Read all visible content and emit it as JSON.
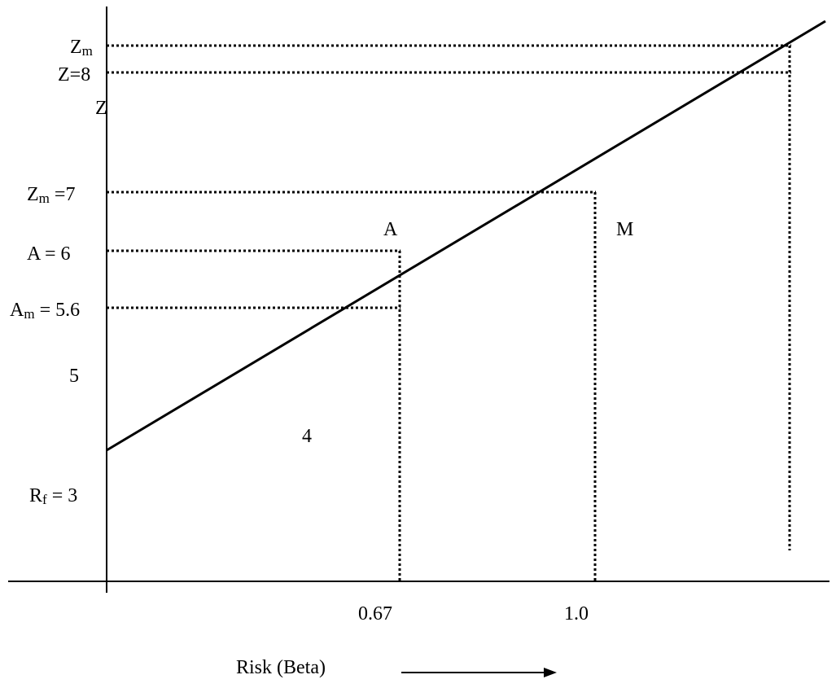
{
  "diagram": {
    "x_axis_label": "Risk (Beta)",
    "y_axis_label": "Z",
    "x_ticks": [
      "0.67",
      "1.0"
    ],
    "y_labels": {
      "zm_top_main": "Z",
      "zm_top_sub": "m",
      "z8": "Z=8",
      "zm7_main": "Z",
      "zm7_sub": "m",
      "zm7_value": " =7",
      "a6": "A = 6",
      "am_main": "A",
      "am_sub": "m",
      "am_value": " = 5.6",
      "five": "5",
      "rf_main": "R",
      "rf_sub": "f",
      "rf_value": " = 3"
    },
    "point_labels": {
      "a": "A",
      "m": "M",
      "four": "4"
    }
  },
  "colors": {
    "ink": "#000000",
    "background": "#ffffff"
  }
}
